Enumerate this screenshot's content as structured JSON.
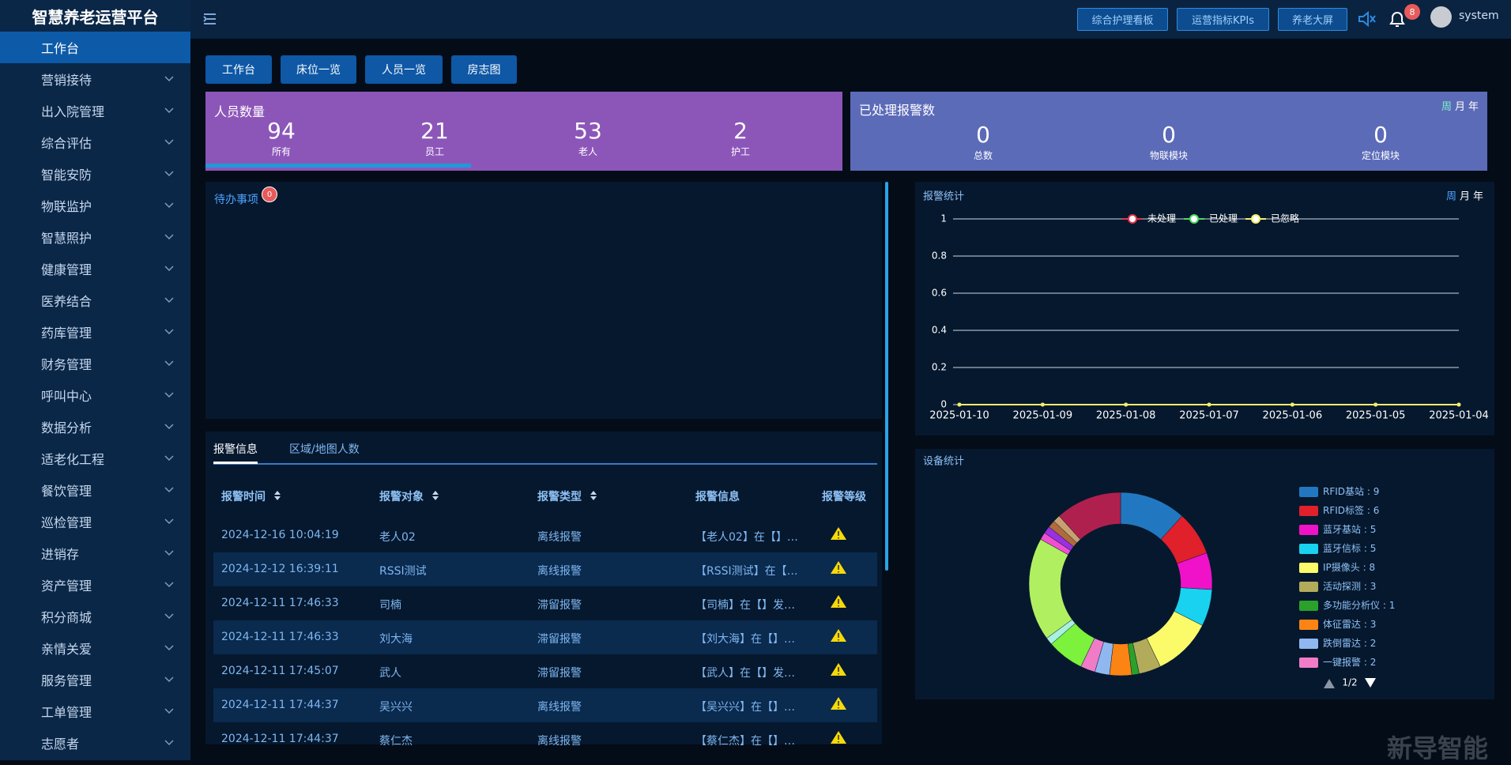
{
  "header": {
    "title": "智慧养老运营平台",
    "buttons": [
      "综合护理看板",
      "运营指标KPIs",
      "养老大屏"
    ],
    "notification_count": 8,
    "user": "system"
  },
  "sidebar": {
    "active": 0,
    "items": [
      "工作台",
      "营销接待",
      "出入院管理",
      "综合评估",
      "智能安防",
      "物联监护",
      "智慧照护",
      "健康管理",
      "医养结合",
      "药库管理",
      "财务管理",
      "呼叫中心",
      "数据分析",
      "适老化工程",
      "餐饮管理",
      "巡检管理",
      "进销存",
      "资产管理",
      "积分商城",
      "亲情关爱",
      "服务管理",
      "工单管理",
      "志愿者"
    ]
  },
  "quick_tabs": [
    "工作台",
    "床位一览",
    "人员一览",
    "房志图"
  ],
  "people_card": {
    "title": "人员数量",
    "stats": [
      {
        "value": 94,
        "label": "所有"
      },
      {
        "value": 21,
        "label": "员工"
      },
      {
        "value": 53,
        "label": "老人"
      },
      {
        "value": 2,
        "label": "护工"
      }
    ]
  },
  "alarm_card": {
    "title": "已处理报警数",
    "periods": [
      "周",
      "月",
      "年"
    ],
    "stats": [
      {
        "value": 0,
        "label": "总数"
      },
      {
        "value": 0,
        "label": "物联模块"
      },
      {
        "value": 0,
        "label": "定位模块"
      }
    ]
  },
  "todo": {
    "title": "待办事项",
    "count": 0
  },
  "alarm_table": {
    "tabs": [
      "报警信息",
      "区域/地图人数"
    ],
    "columns": [
      "报警时间",
      "报警对象",
      "报警类型",
      "报警信息",
      "报警等级"
    ],
    "rows": [
      [
        "2024-12-16 10:04:19",
        "老人02",
        "离线报警",
        "【老人02】在【】…"
      ],
      [
        "2024-12-12 16:39:11",
        "RSSI测试",
        "离线报警",
        "【RSSI测试】在【…"
      ],
      [
        "2024-12-11 17:46:33",
        "司楠",
        "滞留报警",
        "【司楠】在【】发…"
      ],
      [
        "2024-12-11 17:46:33",
        "刘大海",
        "滞留报警",
        "【刘大海】在【】…"
      ],
      [
        "2024-12-11 17:45:07",
        "武人",
        "滞留报警",
        "【武人】在【】发…"
      ],
      [
        "2024-12-11 17:44:37",
        "吴兴兴",
        "离线报警",
        "【吴兴兴】在【】…"
      ],
      [
        "2024-12-11 17:44:37",
        "蔡仁杰",
        "离线报警",
        "【蔡仁杰】在【】…"
      ]
    ]
  },
  "chart_data": [
    {
      "type": "line",
      "title": "报警统计",
      "periods": [
        "周",
        "月",
        "年"
      ],
      "categories": [
        "2025-01-10",
        "2025-01-09",
        "2025-01-08",
        "2025-01-07",
        "2025-01-06",
        "2025-01-05",
        "2025-01-04"
      ],
      "series": [
        {
          "name": "未处理",
          "color": "#e8334f",
          "values": [
            0,
            0,
            0,
            0,
            0,
            0,
            0
          ]
        },
        {
          "name": "已处理",
          "color": "#4cd964",
          "values": [
            0,
            0,
            0,
            0,
            0,
            0,
            0
          ]
        },
        {
          "name": "已忽略",
          "color": "#f2ef6b",
          "values": [
            0,
            0,
            0,
            0,
            0,
            0,
            0
          ]
        }
      ],
      "ylim": [
        0,
        1
      ],
      "yticks": [
        0,
        0.2,
        0.4,
        0.6,
        0.8,
        1
      ],
      "grid": true
    },
    {
      "type": "pie",
      "title": "设备统计",
      "categories": [
        "RFID基站",
        "RFID标签",
        "蓝牙基站",
        "蓝牙信标",
        "IP摄像头",
        "活动探测",
        "多功能分析仪",
        "体征雷达",
        "跌倒雷达",
        "一键报警",
        null,
        null,
        null,
        null,
        null,
        null,
        null,
        null
      ],
      "values": [
        9,
        6,
        5,
        5,
        8,
        3,
        1,
        3,
        2,
        2,
        5,
        1,
        14,
        1,
        1,
        1,
        1,
        9
      ],
      "colors": [
        "#2278c0",
        "#e0202a",
        "#f012c8",
        "#18d2f0",
        "#fbfb6a",
        "#b2ac5a",
        "#2aa12a",
        "#fb8414",
        "#90b8f0",
        "#f07cc8",
        "#7cf23c",
        "#a8f0e0",
        "#b0f060",
        "#f050d0",
        "#9a30e0",
        "#b06a3c",
        "#c8a070",
        "#b0204f"
      ],
      "legend_separator": " : ",
      "legend_page": "1/2"
    }
  ],
  "watermark": "新导智能"
}
